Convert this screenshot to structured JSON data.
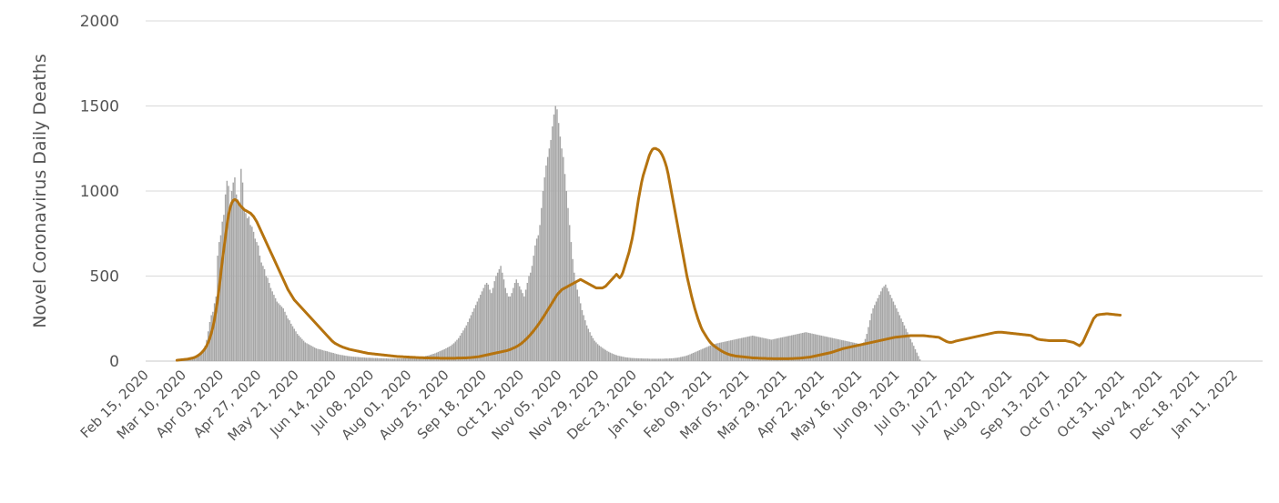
{
  "chart_data": {
    "type": "bar",
    "ylabel": "Novel Coronavirus Daily Deaths",
    "xlabel": "",
    "ylim": [
      0,
      2000
    ],
    "yticks": [
      0,
      500,
      1000,
      1500,
      2000
    ],
    "grid": true,
    "xtick_labels": [
      "Feb 15, 2020",
      "Mar 10, 2020",
      "Apr 03, 2020",
      "Apr 27, 2020",
      "May 21, 2020",
      "Jun 14, 2020",
      "Jul 08, 2020",
      "Aug 01, 2020",
      "Aug 25, 2020",
      "Sep 18, 2020",
      "Oct 12, 2020",
      "Nov 05, 2020",
      "Nov 29, 2020",
      "Dec 23, 2020",
      "Jan 16, 2021",
      "Feb 09, 2021",
      "Mar 05, 2021",
      "Mar 29, 2021",
      "Apr 22, 2021",
      "May 16, 2021",
      "Jun 09, 2021",
      "Jul 03, 2021",
      "Jul 27, 2021",
      "Aug 20, 2021",
      "Sep 13, 2021",
      "Oct 07, 2021",
      "Oct 31, 2021",
      "Nov 24, 2021",
      "Dec 18, 2021",
      "Jan 11, 2022"
    ],
    "colors": {
      "bars": "#a6a6a6",
      "average_line": "#b5730f",
      "grid": "#d9d9d9"
    },
    "series": [
      {
        "type": "bar",
        "x_start": "2020-02-15",
        "x_step_days": 1,
        "values": [
          0,
          0,
          0,
          0,
          0,
          0,
          0,
          0,
          0,
          0,
          0,
          0,
          0,
          0,
          0,
          0,
          0,
          0,
          0,
          0,
          0,
          0,
          0,
          0,
          6,
          5,
          15,
          8,
          12,
          18,
          15,
          19,
          23,
          33,
          35,
          48,
          50,
          70,
          90,
          125,
          175,
          230,
          270,
          290,
          340,
          380,
          620,
          700,
          740,
          820,
          860,
          980,
          1060,
          1030,
          900,
          1000,
          1050,
          1080,
          980,
          950,
          920,
          1130,
          1050,
          900,
          870,
          840,
          850,
          800,
          790,
          760,
          720,
          700,
          680,
          620,
          580,
          560,
          540,
          500,
          490,
          460,
          430,
          410,
          390,
          370,
          350,
          340,
          330,
          320,
          310,
          290,
          270,
          250,
          240,
          220,
          205,
          190,
          175,
          160,
          150,
          140,
          130,
          120,
          110,
          105,
          100,
          95,
          90,
          85,
          80,
          75,
          72,
          70,
          68,
          65,
          62,
          60,
          58,
          55,
          52,
          50,
          48,
          45,
          42,
          40,
          38,
          36,
          35,
          33,
          32,
          30,
          29,
          28,
          27,
          26,
          25,
          25,
          24,
          23,
          22,
          22,
          21,
          20,
          20,
          20,
          19,
          19,
          18,
          18,
          18,
          17,
          17,
          17,
          16,
          16,
          16,
          15,
          15,
          15,
          15,
          15,
          15,
          15,
          15,
          15,
          16,
          16,
          16,
          17,
          17,
          18,
          18,
          19,
          20,
          21,
          22,
          23,
          24,
          26,
          28,
          30,
          32,
          34,
          37,
          40,
          43,
          46,
          50,
          54,
          58,
          62,
          66,
          70,
          75,
          80,
          85,
          90,
          98,
          105,
          115,
          125,
          135,
          150,
          165,
          180,
          195,
          210,
          230,
          250,
          270,
          290,
          310,
          330,
          350,
          370,
          390,
          410,
          430,
          450,
          460,
          450,
          420,
          400,
          430,
          470,
          500,
          520,
          540,
          560,
          520,
          480,
          430,
          400,
          380,
          380,
          400,
          430,
          460,
          480,
          460,
          440,
          420,
          400,
          380,
          420,
          460,
          500,
          520,
          560,
          620,
          680,
          720,
          740,
          800,
          900,
          1000,
          1080,
          1150,
          1200,
          1250,
          1300,
          1380,
          1450,
          1500,
          1480,
          1400,
          1320,
          1250,
          1200,
          1100,
          1000,
          900,
          800,
          700,
          600,
          520,
          460,
          420,
          380,
          340,
          300,
          270,
          240,
          210,
          190,
          170,
          150,
          135,
          120,
          110,
          100,
          92,
          85,
          78,
          72,
          66,
          60,
          55,
          50,
          46,
          42,
          38,
          35,
          32,
          30,
          28,
          26,
          24,
          22,
          21,
          20,
          19,
          18,
          18,
          17,
          17,
          16,
          16,
          16,
          15,
          15,
          15,
          15,
          14,
          14,
          14,
          14,
          14,
          14,
          14,
          14,
          14,
          14,
          15,
          15,
          15,
          16,
          16,
          17,
          18,
          19,
          20,
          22,
          24,
          26,
          28,
          30,
          33,
          36,
          40,
          44,
          48,
          52,
          56,
          60,
          64,
          68,
          72,
          76,
          80,
          84,
          88,
          92,
          95,
          98,
          101,
          104,
          106,
          108,
          110,
          112,
          114,
          116,
          118,
          120,
          122,
          124,
          126,
          128,
          130,
          132,
          134,
          136,
          138,
          140,
          142,
          144,
          146,
          148,
          150,
          148,
          146,
          144,
          142,
          140,
          138,
          136,
          134,
          132,
          130,
          128,
          126,
          128,
          130,
          132,
          134,
          136,
          138,
          140,
          142,
          144,
          146,
          148,
          150,
          152,
          154,
          156,
          158,
          160,
          162,
          164,
          166,
          168,
          170,
          168,
          166,
          164,
          162,
          160,
          158,
          156,
          154,
          152,
          150,
          148,
          146,
          144,
          142,
          140,
          138,
          136,
          134,
          132,
          130,
          128,
          126,
          124,
          122,
          120,
          118,
          116,
          114,
          112,
          110,
          108,
          106,
          104,
          102,
          100,
          98,
          110,
          130,
          160,
          200,
          240,
          280,
          310,
          330,
          350,
          370,
          390,
          410,
          430,
          440,
          450,
          430,
          410,
          390,
          370,
          350,
          330,
          310,
          290,
          270,
          250,
          230,
          210,
          190,
          170,
          150,
          130,
          110,
          90,
          70,
          50,
          30,
          10,
          0
        ]
      },
      {
        "type": "line",
        "name": "",
        "x_start": "2020-03-06",
        "x_step_days": 1,
        "values": [
          5,
          6,
          7,
          8,
          9,
          10,
          11,
          12,
          14,
          16,
          18,
          21,
          25,
          30,
          36,
          43,
          52,
          62,
          75,
          90,
          110,
          135,
          165,
          200,
          245,
          300,
          360,
          430,
          510,
          590,
          660,
          730,
          800,
          860,
          900,
          930,
          945,
          950,
          945,
          935,
          920,
          910,
          900,
          890,
          885,
          880,
          875,
          870,
          860,
          850,
          835,
          820,
          800,
          780,
          760,
          740,
          720,
          700,
          680,
          660,
          640,
          620,
          600,
          580,
          560,
          540,
          520,
          500,
          480,
          460,
          440,
          420,
          405,
          390,
          375,
          360,
          350,
          340,
          330,
          320,
          310,
          300,
          290,
          280,
          270,
          260,
          250,
          240,
          230,
          220,
          210,
          200,
          190,
          180,
          170,
          160,
          150,
          140,
          130,
          120,
          112,
          105,
          100,
          95,
          90,
          86,
          82,
          79,
          76,
          73,
          70,
          68,
          66,
          64,
          62,
          60,
          58,
          56,
          54,
          52,
          50,
          48,
          46,
          45,
          44,
          43,
          42,
          41,
          40,
          39,
          38,
          37,
          36,
          35,
          34,
          33,
          32,
          31,
          30,
          29,
          28,
          27,
          27,
          26,
          26,
          25,
          25,
          24,
          24,
          23,
          23,
          22,
          22,
          21,
          21,
          20,
          20,
          20,
          19,
          19,
          19,
          19,
          18,
          18,
          18,
          18,
          18,
          18,
          17,
          17,
          17,
          17,
          17,
          17,
          17,
          17,
          17,
          17,
          17,
          18,
          18,
          18,
          18,
          19,
          19,
          19,
          20,
          20,
          21,
          22,
          23,
          24,
          25,
          26,
          28,
          30,
          32,
          34,
          36,
          38,
          40,
          42,
          44,
          46,
          48,
          50,
          52,
          54,
          56,
          58,
          60,
          62,
          65,
          68,
          72,
          76,
          80,
          85,
          90,
          96,
          102,
          110,
          118,
          127,
          136,
          146,
          156,
          167,
          178,
          190,
          202,
          215,
          228,
          242,
          256,
          270,
          285,
          300,
          315,
          330,
          345,
          360,
          375,
          390,
          400,
          410,
          420,
          425,
          430,
          435,
          440,
          445,
          450,
          455,
          460,
          465,
          470,
          475,
          480,
          475,
          470,
          465,
          460,
          455,
          450,
          445,
          440,
          435,
          430,
          430,
          430,
          430,
          430,
          435,
          440,
          450,
          460,
          470,
          480,
          490,
          500,
          510,
          500,
          490,
          500,
          520,
          550,
          580,
          610,
          640,
          680,
          720,
          770,
          830,
          890,
          950,
          1000,
          1050,
          1090,
          1120,
          1150,
          1180,
          1210,
          1230,
          1245,
          1250,
          1250,
          1245,
          1240,
          1230,
          1215,
          1195,
          1170,
          1140,
          1100,
          1050,
          1000,
          950,
          900,
          850,
          800,
          750,
          700,
          650,
          600,
          550,
          500,
          460,
          420,
          380,
          345,
          310,
          280,
          250,
          225,
          200,
          180,
          165,
          150,
          135,
          122,
          110,
          100,
          92,
          85,
          78,
          72,
          66,
          60,
          55,
          50,
          46,
          42,
          39,
          36,
          34,
          32,
          30,
          29,
          28,
          27,
          26,
          25,
          24,
          23,
          22,
          21,
          20,
          19,
          19,
          18,
          18,
          17,
          17,
          16,
          16,
          16,
          15,
          15,
          15,
          15,
          14,
          14,
          14,
          14,
          14,
          14,
          14,
          14,
          14,
          14,
          14,
          15,
          15,
          15,
          16,
          16,
          17,
          17,
          18,
          19,
          20,
          21,
          22,
          23,
          24,
          26,
          28,
          30,
          32,
          34,
          36,
          38,
          40,
          42,
          44,
          46,
          48,
          50,
          53,
          56,
          59,
          62,
          65,
          68,
          71,
          74,
          76,
          78,
          80,
          82,
          84,
          86,
          88,
          90,
          92,
          94,
          96,
          98,
          100,
          102,
          104,
          106,
          108,
          110,
          112,
          114,
          116,
          118,
          120,
          122,
          124,
          126,
          128,
          130,
          132,
          134,
          136,
          138,
          140,
          141,
          142,
          143,
          144,
          145,
          146,
          147,
          148,
          149,
          150,
          150,
          150,
          150,
          150,
          150,
          150,
          150,
          150,
          149,
          148,
          147,
          146,
          145,
          144,
          143,
          142,
          141,
          140,
          135,
          130,
          125,
          120,
          115,
          112,
          110,
          110,
          112,
          115,
          118,
          120,
          122,
          124,
          126,
          128,
          130,
          132,
          134,
          136,
          138,
          140,
          142,
          144,
          146,
          148,
          150,
          152,
          154,
          156,
          158,
          160,
          162,
          164,
          166,
          168,
          169,
          170,
          170,
          170,
          169,
          168,
          167,
          166,
          165,
          164,
          163,
          162,
          161,
          160,
          159,
          158,
          157,
          156,
          155,
          154,
          153,
          152,
          150,
          145,
          140,
          135,
          130,
          128,
          126,
          125,
          124,
          123,
          122,
          121,
          120,
          120,
          120,
          120,
          120,
          120,
          120,
          120,
          120,
          120,
          120,
          118,
          116,
          114,
          112,
          110,
          105,
          100,
          95,
          90,
          100,
          110,
          130,
          150,
          170,
          190,
          210,
          230,
          250,
          260,
          270,
          272,
          274,
          275,
          276,
          277,
          278,
          278,
          277,
          276,
          275,
          274,
          273,
          272,
          271,
          270
        ]
      }
    ]
  }
}
